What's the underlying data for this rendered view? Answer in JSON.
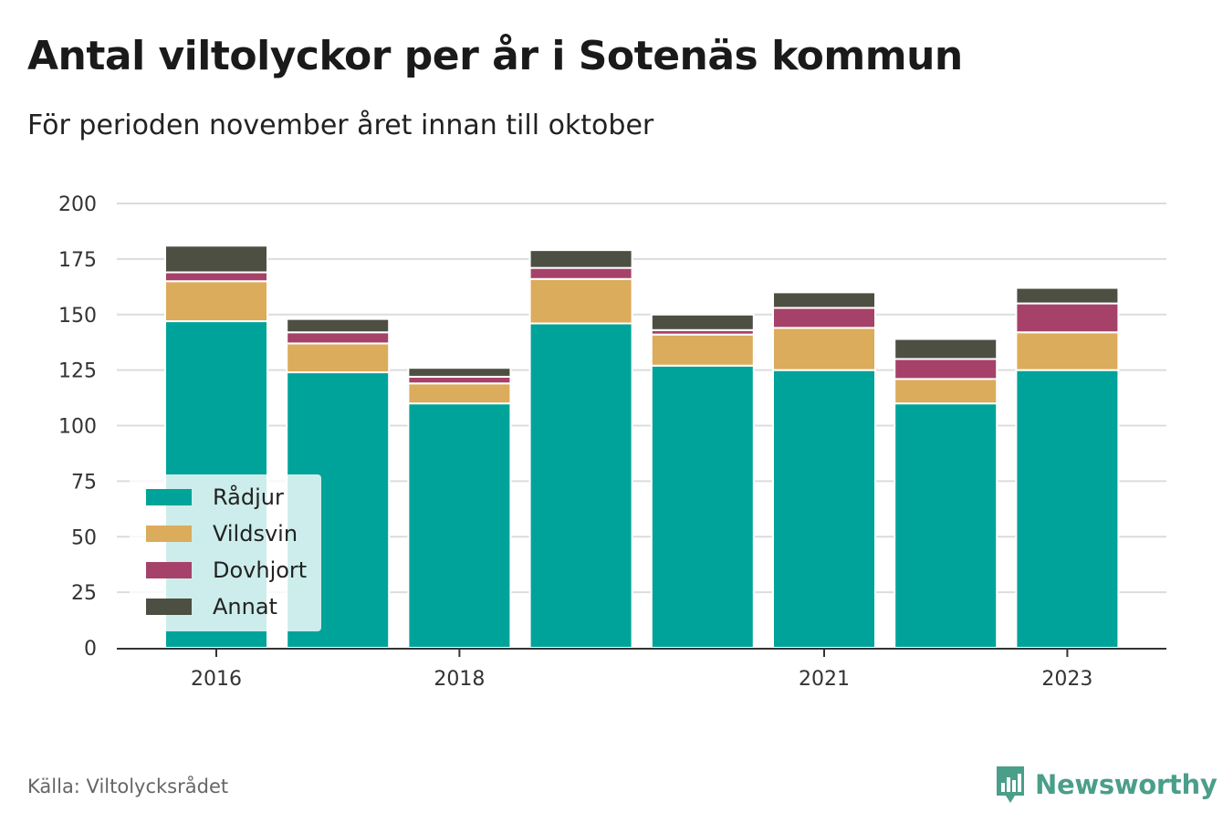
{
  "header": {
    "title": "Antal viltolyckor per år i Sotenäs kommun",
    "subtitle": "För perioden november året innan till oktober"
  },
  "footer": {
    "source": "Källa: Viltolycksrådet",
    "brand": "Newsworthy",
    "brand_icon": "bar-chart-speech-bubble-icon",
    "brand_color": "#4a9e8a"
  },
  "chart_data": {
    "type": "bar",
    "stacked": true,
    "categories": [
      "2016",
      "2017",
      "2018",
      "2019",
      "2020",
      "2021",
      "2022",
      "2023"
    ],
    "x_tick_labels": [
      "2016",
      "",
      "2018",
      "",
      "",
      "2021",
      "",
      "2023"
    ],
    "series": [
      {
        "name": "Rådjur",
        "color": "#00a39a",
        "values": [
          147,
          124,
          110,
          146,
          127,
          125,
          110,
          125
        ]
      },
      {
        "name": "Vildsvin",
        "color": "#dbac5b",
        "values": [
          18,
          13,
          9,
          20,
          14,
          19,
          11,
          17
        ]
      },
      {
        "name": "Dovhjort",
        "color": "#a64269",
        "values": [
          4,
          5,
          3,
          5,
          2,
          9,
          9,
          13
        ]
      },
      {
        "name": "Annat",
        "color": "#4d4f42",
        "values": [
          12,
          6,
          4,
          8,
          7,
          7,
          9,
          7
        ]
      }
    ],
    "ylim": [
      0,
      200
    ],
    "yticks": [
      0,
      25,
      50,
      75,
      100,
      125,
      150,
      175,
      200
    ],
    "grid": true,
    "legend_position": "bottom-left",
    "xlabel": "",
    "ylabel": ""
  }
}
